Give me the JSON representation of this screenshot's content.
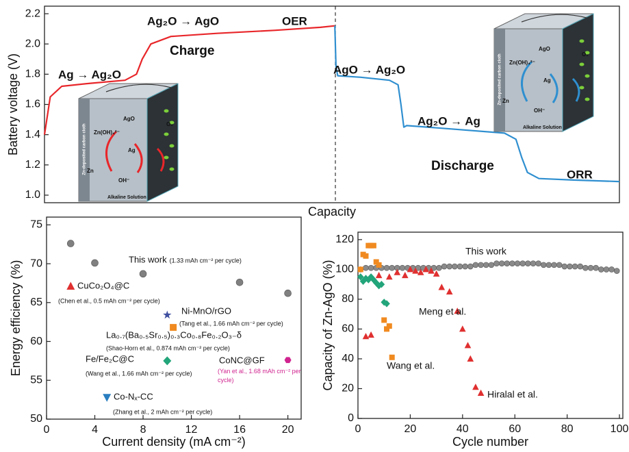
{
  "chart_data": [
    {
      "type": "line",
      "xlabel": "Capacity",
      "ylabel": "Battery voltage (V)",
      "xlim": [
        0,
        100
      ],
      "ylim": [
        0.95,
        2.25
      ],
      "yticks": [
        {
          "value": 1,
          "label": "1.0"
        },
        1.2,
        1.4,
        1.6,
        1.8,
        {
          "value": 2,
          "label": "2.0"
        },
        2.2
      ],
      "series": [
        {
          "name": "Charge",
          "color": "#e8262a",
          "x": [
            0,
            1,
            3,
            8,
            14,
            16,
            17,
            18.5,
            22,
            30,
            40,
            48,
            50.5
          ],
          "values": [
            1.4,
            1.65,
            1.72,
            1.74,
            1.76,
            1.8,
            1.9,
            2.0,
            2.05,
            2.07,
            2.09,
            2.11,
            2.12
          ]
        },
        {
          "name": "Discharge",
          "color": "#2f8fd0",
          "x": [
            50.5,
            50.7,
            51,
            55,
            60,
            61.5,
            62,
            62.5,
            63,
            70,
            80,
            82,
            83,
            84,
            86,
            92,
            100
          ],
          "values": [
            2.12,
            1.85,
            1.79,
            1.78,
            1.76,
            1.73,
            1.6,
            1.45,
            1.46,
            1.44,
            1.41,
            1.37,
            1.25,
            1.15,
            1.11,
            1.1,
            1.09
          ]
        }
      ],
      "annotations": [
        "Ag → Ag₂O",
        "Ag₂O → AgO",
        "OER",
        "AgO → Ag₂O",
        "Ag₂O → Ag",
        "ORR"
      ],
      "insets": [
        {
          "labels": [
            "AgO",
            "Zn(OH)₄²⁻",
            "Ag",
            "Zn",
            "OH⁻",
            "O₂",
            "Zn-deposited carbon cloth",
            "Alkaline Solution"
          ]
        },
        {
          "labels": [
            "AgO",
            "Zn(OH)₄²⁻",
            "Ag",
            "Zn",
            "OH⁻",
            "O₂",
            "Zn-deposited carbon cloth",
            "Alkaline Solution"
          ]
        }
      ]
    },
    {
      "type": "scatter",
      "xlabel": "Current density (mA cm⁻²)",
      "ylabel": "Energy efficiency (%)",
      "xlim": [
        0,
        21.1
      ],
      "ylim": [
        50,
        76
      ],
      "xticks": [
        0,
        4,
        8,
        12,
        16,
        20
      ],
      "yticks": [
        50,
        55,
        60,
        65,
        70,
        75
      ],
      "series": [
        {
          "name": "This work",
          "note": "(1.33 mAh cm⁻² per cycle)",
          "color": "#808080",
          "marker": "circle",
          "x": [
            2,
            4,
            8,
            16,
            20
          ],
          "values": [
            72.6,
            70.1,
            68.7,
            67.6,
            66.2
          ]
        },
        {
          "name": "CuCo₂O₄@C",
          "note": "(Chen et al., 0.5 mAh cm⁻² per cycle)",
          "color": "#e03030",
          "marker": "triangle",
          "x": [
            2
          ],
          "values": [
            67.1
          ]
        },
        {
          "name": "Ni-MnO/rGO",
          "note": "(Tang et al., 1.66 mAh cm⁻² per cycle)",
          "color": "#3f4fa0",
          "marker": "star",
          "x": [
            10
          ],
          "values": [
            63.4
          ]
        },
        {
          "name": "La₀.₇(Ba₀.₅Sr₀.₅)₀.₃Co₀.₈Fe₀.₂O₃₋δ",
          "note": "(Shao-Horn et al., 0.874 mAh cm⁻² per cycle)",
          "color": "#f08a20",
          "marker": "square",
          "x": [
            10.5
          ],
          "values": [
            61.8
          ]
        },
        {
          "name": "Fe/Fe₂C@C",
          "note": "(Wang et al., 1.66 mAh cm⁻² per cycle)",
          "color": "#22a57a",
          "marker": "diamond",
          "x": [
            10
          ],
          "values": [
            57.5
          ]
        },
        {
          "name": "CoNC@GF",
          "note": "(Yan et al., 1.68 mAh cm⁻² per cycle)",
          "color": "#d0238f",
          "marker": "hexagon",
          "x": [
            20
          ],
          "values": [
            57.6
          ]
        },
        {
          "name": "Co-Nₓ-CC",
          "note": "(Zhang et al., 2 mAh cm⁻² per cycle)",
          "color": "#2a7ec0",
          "marker": "triangle-down",
          "x": [
            5
          ],
          "values": [
            52.8
          ]
        }
      ]
    },
    {
      "type": "scatter",
      "xlabel": "Cycle number",
      "ylabel": "Capacity of Zn-AgO (%)",
      "xlim": [
        0,
        101.3
      ],
      "ylim": [
        0,
        125
      ],
      "xticks": [
        0,
        20,
        40,
        60,
        80,
        100
      ],
      "yticks": [
        0,
        20,
        40,
        60,
        80,
        100,
        120
      ],
      "series": [
        {
          "name": "This work",
          "color": "#8a8a8a",
          "marker": "circle",
          "x": [
            1,
            3,
            5,
            7,
            9,
            11,
            13,
            15,
            17,
            19,
            21,
            23,
            25,
            27,
            29,
            31,
            33,
            35,
            37,
            39,
            41,
            43,
            45,
            47,
            49,
            51,
            53,
            55,
            57,
            59,
            61,
            63,
            65,
            67,
            69,
            71,
            73,
            75,
            77,
            79,
            81,
            83,
            85,
            87,
            89,
            91,
            93,
            95,
            97,
            99
          ],
          "values": [
            100,
            101,
            101,
            101,
            101,
            101,
            101,
            101,
            101,
            101,
            101,
            101,
            101,
            101,
            101,
            101,
            102,
            102,
            102,
            102,
            102,
            102,
            103,
            103,
            103,
            103,
            104,
            104,
            104,
            104,
            104,
            104,
            104,
            104,
            104,
            103,
            103,
            103,
            103,
            102,
            102,
            102,
            102,
            101,
            101,
            101,
            100,
            100,
            100,
            99
          ]
        },
        {
          "name": "Meng et al.",
          "color": "#22a57a",
          "marker": "diamond",
          "x": [
            1,
            2,
            3,
            4,
            5,
            6,
            7,
            8,
            9,
            10,
            11
          ],
          "values": [
            95,
            92,
            94,
            93,
            95,
            93,
            91,
            89,
            90,
            78,
            77
          ]
        },
        {
          "name": "Wang et al.",
          "color": "#f08a20",
          "marker": "square",
          "x": [
            1,
            2,
            3,
            4,
            5,
            6,
            7,
            8,
            10,
            11,
            12,
            13
          ],
          "values": [
            100,
            110,
            109,
            116,
            116,
            116,
            105,
            103,
            66,
            60,
            62,
            41
          ]
        },
        {
          "name": "Hiralal et al.",
          "color": "#e03030",
          "marker": "triangle",
          "x": [
            3,
            5,
            8,
            12,
            15,
            18,
            20,
            22,
            24,
            26,
            28,
            30,
            32,
            35,
            38,
            40,
            42,
            43,
            45,
            47
          ],
          "values": [
            55,
            56,
            96,
            95,
            98,
            96,
            100,
            99,
            98,
            100,
            99,
            97,
            88,
            85,
            72,
            60,
            49,
            40,
            21,
            17
          ]
        }
      ]
    }
  ]
}
